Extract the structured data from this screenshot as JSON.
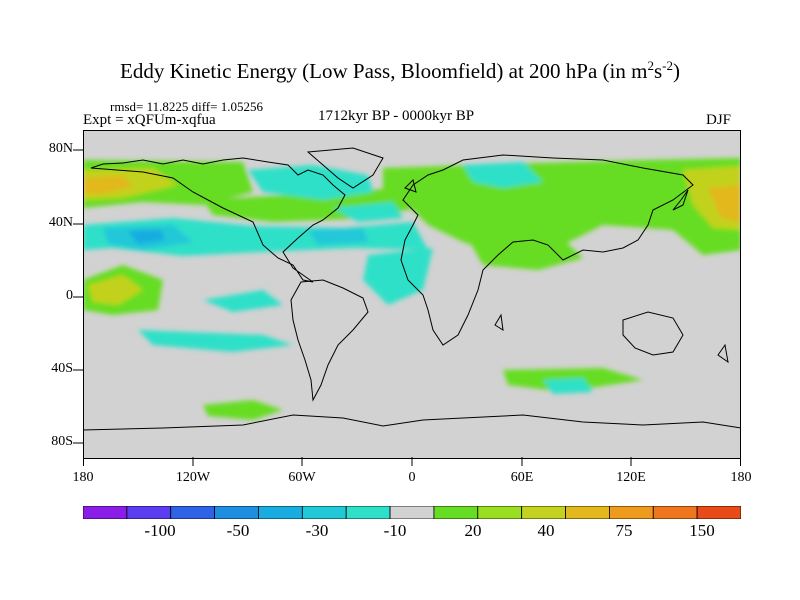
{
  "header": {
    "title_main": "Eddy Kinetic Energy (Low Pass, Bloomfield) at 200 hPa (in m",
    "title_sup1": "2",
    "title_mid": "s",
    "title_sup2": "-2",
    "title_end": ")",
    "stats": "rmsd= 11.8225 diff= 1.05256",
    "expt": "Expt = xQFUm-xqfua",
    "period": "1712kyr BP - 0000kyr BP",
    "season": "DJF"
  },
  "axes": {
    "y_ticks": [
      "80N",
      "40N",
      "0",
      "40S",
      "80S"
    ],
    "x_ticks": [
      "180",
      "120W",
      "60W",
      "0",
      "60E",
      "120E",
      "180"
    ]
  },
  "colorbar": {
    "colors": [
      "#8a1ee8",
      "#5a3df0",
      "#2e63e6",
      "#1e8ee0",
      "#19ace0",
      "#22c8d8",
      "#2fe0c8",
      "#d2d2d2",
      "#66dd22",
      "#9ade22",
      "#c2d21e",
      "#e2b81c",
      "#ee9a1c",
      "#ee761c",
      "#e84a18"
    ],
    "labels": [
      "-100",
      "-50",
      "-30",
      "-10",
      "20",
      "40",
      "75",
      "150"
    ]
  },
  "map": {
    "lon_range": [
      -180,
      180
    ],
    "lat_range": [
      -90,
      90
    ],
    "background_color": "#d2d2d2",
    "coastline_color": "#000000"
  }
}
